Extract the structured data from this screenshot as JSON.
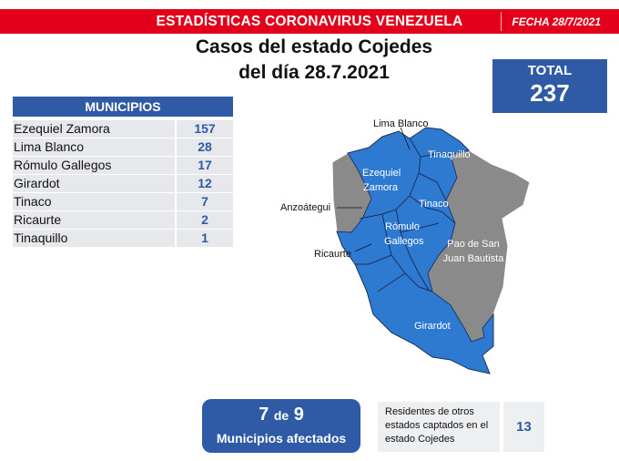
{
  "banner": {
    "title": "ESTADÍSTICAS CORONAVIRUS VENEZUELA",
    "date": "FECHA 28/7/2021"
  },
  "headline": {
    "line1": "Casos del estado Cojedes",
    "line2": "del día 28.7.2021"
  },
  "total": {
    "label": "TOTAL",
    "value": "237"
  },
  "municipios": {
    "header": "MUNICIPIOS",
    "rows": [
      {
        "name": "Ezequiel Zamora",
        "count": "157"
      },
      {
        "name": "Lima Blanco",
        "count": "28"
      },
      {
        "name": "Rómulo Gallegos",
        "count": "17"
      },
      {
        "name": "Girardot",
        "count": "12"
      },
      {
        "name": "Tinaco",
        "count": "7"
      },
      {
        "name": "Ricaurte",
        "count": "2"
      },
      {
        "name": "Tinaquillo",
        "count": "1"
      }
    ]
  },
  "map": {
    "labels": {
      "lima_blanco": "Lima Blanco",
      "tinaquillo": "Tinaquillo",
      "ezequiel_zamora_1": "Ezequiel",
      "ezequiel_zamora_2": "Zamora",
      "tinaco": "Tinaco",
      "anzoategui": "Anzoátegui",
      "romulo_gallegos_1": "Rómulo",
      "romulo_gallegos_2": "Gallegos",
      "pao_1": "Pao de San",
      "pao_2": "Juan Bautista",
      "ricaurte": "Ricaurte",
      "girardot": "Girardot"
    },
    "colors": {
      "affected": "#2e7ad1",
      "unaffected": "#8a8a8a",
      "border": "#1d2f5c"
    }
  },
  "affected": {
    "count": "7",
    "of": "de",
    "total": "9",
    "label": "Municipios afectados"
  },
  "residents": {
    "line1": "Residentes de otros",
    "line2": "estados captados en el",
    "line3": "estado Cojedes",
    "value": "13"
  },
  "colors": {
    "banner": "#e3001b",
    "primary": "#2e5aa6",
    "row_bg": "#e7e8ec"
  }
}
